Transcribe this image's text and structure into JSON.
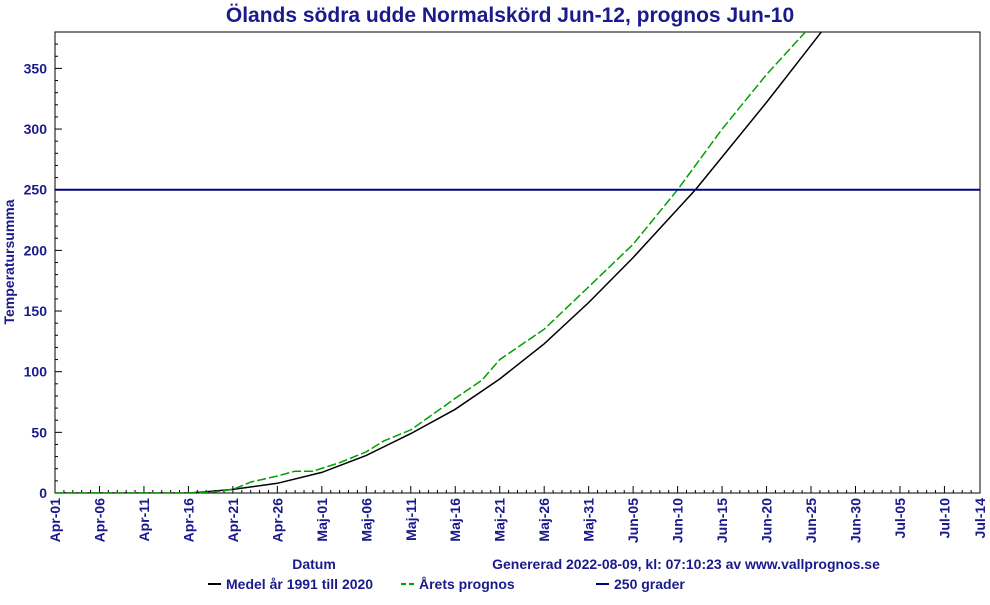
{
  "chart_data": {
    "type": "line",
    "title": "Ölands södra udde Normalskörd Jun-12, prognos Jun-10",
    "xlabel": "Datum",
    "ylabel": "Temperatursumma",
    "footer": "Genererad 2022-08-09, kl: 07:10:23 av www.vallprognos.se",
    "ylim": [
      0,
      380
    ],
    "yticks": [
      0,
      50,
      100,
      150,
      200,
      250,
      300,
      350
    ],
    "x_start": "Apr-01",
    "x_end": "Jul-14",
    "x_ticks": [
      {
        "label": "Apr-01",
        "day": 0
      },
      {
        "label": "Apr-06",
        "day": 5
      },
      {
        "label": "Apr-11",
        "day": 10
      },
      {
        "label": "Apr-16",
        "day": 15
      },
      {
        "label": "Apr-21",
        "day": 20
      },
      {
        "label": "Apr-26",
        "day": 25
      },
      {
        "label": "Maj-01",
        "day": 30
      },
      {
        "label": "Maj-06",
        "day": 35
      },
      {
        "label": "Maj-11",
        "day": 40
      },
      {
        "label": "Maj-16",
        "day": 45
      },
      {
        "label": "Maj-21",
        "day": 50
      },
      {
        "label": "Maj-26",
        "day": 55
      },
      {
        "label": "Maj-31",
        "day": 60
      },
      {
        "label": "Jun-05",
        "day": 65
      },
      {
        "label": "Jun-10",
        "day": 70
      },
      {
        "label": "Jun-15",
        "day": 75
      },
      {
        "label": "Jun-20",
        "day": 80
      },
      {
        "label": "Jun-25",
        "day": 85
      },
      {
        "label": "Jun-30",
        "day": 90
      },
      {
        "label": "Jul-05",
        "day": 95
      },
      {
        "label": "Jul-10",
        "day": 100
      },
      {
        "label": "Jul-14",
        "day": 104
      }
    ],
    "series": [
      {
        "name": "Medel år 1991 till 2020",
        "color": "#000000",
        "style": "solid",
        "points": [
          {
            "x": "Apr-01",
            "y": 0
          },
          {
            "x": "Apr-11",
            "y": 0
          },
          {
            "x": "Apr-16",
            "y": 0
          },
          {
            "x": "Apr-18",
            "y": 1
          },
          {
            "x": "Apr-21",
            "y": 3
          },
          {
            "x": "Apr-26",
            "y": 8
          },
          {
            "x": "Maj-01",
            "y": 17
          },
          {
            "x": "Maj-06",
            "y": 31
          },
          {
            "x": "Maj-11",
            "y": 49
          },
          {
            "x": "Maj-16",
            "y": 69
          },
          {
            "x": "Maj-21",
            "y": 94
          },
          {
            "x": "Maj-26",
            "y": 123
          },
          {
            "x": "Maj-31",
            "y": 157
          },
          {
            "x": "Jun-05",
            "y": 194
          },
          {
            "x": "Jun-10",
            "y": 234
          },
          {
            "x": "Jun-12",
            "y": 250
          },
          {
            "x": "Jun-15",
            "y": 277
          },
          {
            "x": "Jun-20",
            "y": 322
          },
          {
            "x": "Jun-25",
            "y": 369
          },
          {
            "x": "Jun-27",
            "y": 388
          }
        ]
      },
      {
        "name": "Årets prognos",
        "color": "#00a000",
        "style": "dashed",
        "points": [
          {
            "x": "Apr-01",
            "y": 0
          },
          {
            "x": "Apr-11",
            "y": 0
          },
          {
            "x": "Apr-16",
            "y": 0
          },
          {
            "x": "Apr-19",
            "y": 1
          },
          {
            "x": "Apr-21",
            "y": 3
          },
          {
            "x": "Apr-23",
            "y": 9
          },
          {
            "x": "Apr-26",
            "y": 14
          },
          {
            "x": "Apr-28",
            "y": 18
          },
          {
            "x": "Apr-30",
            "y": 18
          },
          {
            "x": "Maj-03",
            "y": 25
          },
          {
            "x": "Maj-06",
            "y": 34
          },
          {
            "x": "Maj-08",
            "y": 43
          },
          {
            "x": "Maj-11",
            "y": 52
          },
          {
            "x": "Maj-16",
            "y": 78
          },
          {
            "x": "Maj-19",
            "y": 93
          },
          {
            "x": "Maj-21",
            "y": 110
          },
          {
            "x": "Maj-26",
            "y": 135
          },
          {
            "x": "Maj-31",
            "y": 170
          },
          {
            "x": "Jun-05",
            "y": 205
          },
          {
            "x": "Jun-10",
            "y": 250
          },
          {
            "x": "Jun-15",
            "y": 300
          },
          {
            "x": "Jun-20",
            "y": 345
          },
          {
            "x": "Jun-25",
            "y": 385
          }
        ]
      },
      {
        "name": "250 grader",
        "color": "#000080",
        "style": "solid",
        "points": [
          {
            "x": "Apr-01",
            "y": 250
          },
          {
            "x": "Jul-14",
            "y": 250
          }
        ]
      }
    ],
    "legend": [
      {
        "label": "Medel år 1991 till 2020",
        "color": "#000000",
        "style": "solid"
      },
      {
        "label": "Årets prognos",
        "color": "#00a000",
        "style": "dashed"
      },
      {
        "label": "250 grader",
        "color": "#000080",
        "style": "solid"
      }
    ],
    "legend_position": "bottom",
    "grid": false
  }
}
